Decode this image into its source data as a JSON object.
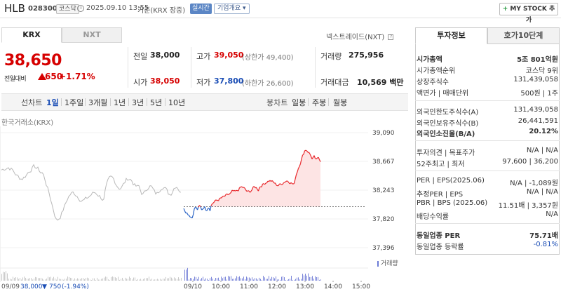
{
  "header": {
    "stock_name": "HLB",
    "stock_code": "028300",
    "market": "코스닥",
    "date_time": "2025.09.10 13:55",
    "basis": "기준(KRX 장중)",
    "realtime": "실시간",
    "company_info": "기업개요",
    "mystock_label": "MY STOCK 추가"
  },
  "tabs": {
    "krx": "KRX",
    "nxt": "NXT"
  },
  "nextrade_label": "넥스트레이드(NXT)",
  "price": {
    "current": "38,650",
    "change_label": "전일대비",
    "change_amount": "650",
    "change_rate": "+1.71%"
  },
  "quote": {
    "prev_close_label": "전일",
    "prev_close": "38,000",
    "high_label": "고가",
    "high": "39,050",
    "upper_limit": "(상한가 49,400)",
    "volume_label": "거래량",
    "volume": "275,956",
    "open_label": "시가",
    "open": "38,050",
    "low_label": "저가",
    "low": "37,800",
    "lower_limit": "(하한가 26,600)",
    "amount_label": "거래대금",
    "amount": "10,569 백만"
  },
  "period_bar": {
    "line_chart": "선차트",
    "periods": [
      "1일",
      "1주일",
      "3개월",
      "1년",
      "3년",
      "5년",
      "10년"
    ],
    "candle_chart": "봉차트",
    "candle_periods": [
      "일봉",
      "주봉",
      "월봉"
    ]
  },
  "chart_data": {
    "type": "line",
    "exchange_label": "한국거래소(KRX)",
    "y_ticks": [
      "39,090",
      "38,667",
      "38,243",
      "37,820",
      "37,396"
    ],
    "ylim": [
      37396,
      39090
    ],
    "prev_close": 38000,
    "x_ticks": [
      "09/10",
      "10:00",
      "11:00",
      "12:00",
      "13:00",
      "14:00",
      "15:00"
    ],
    "volume_legend": "거래량",
    "prev_day_label": "09/09",
    "prev_day_close": "38,000",
    "prev_day_change": "750",
    "prev_day_rate": "(-1.94%)",
    "colors": {
      "up": "#e8262a",
      "down": "#2a63c5",
      "prev": "#b8b8b8",
      "fill": "#fde4e4"
    }
  },
  "info": {
    "tab_invest": "투자정보",
    "tab_order": "호가10단계",
    "market_cap_label": "시가총액",
    "market_cap": "5조 801억원",
    "rank_label": "시가총액순위",
    "rank": "코스닥 9위",
    "shares_label": "상장주식수",
    "shares": "131,439,058",
    "par_label": "액면가 | 매매단위",
    "par": "500원 | 1주",
    "foreign_limit_label": "외국인한도주식수(A)",
    "foreign_limit": "131,439,058",
    "foreign_hold_label": "외국인보유주식수(B)",
    "foreign_hold": "26,441,591",
    "foreign_ratio_label": "외국인소진율(B/A)",
    "foreign_ratio": "20.12%",
    "opinion_label": "투자의견 | 목표주가",
    "opinion": "N/A | N/A",
    "high52_label": "52주최고 | 최저",
    "high52": "97,600 | 36,200",
    "per_label": "PER | EPS(2025.06)",
    "per": "N/A | -1,089원",
    "est_per_label": "추정PER | EPS",
    "est_per": "N/A | N/A",
    "pbr_label": "PBR | BPS (2025.06)",
    "pbr": "11.51배 | 3,357원",
    "dividend_label": "배당수익률",
    "dividend": "N/A",
    "sector_per_label": "동일업종 PER",
    "sector_per": "75.71배",
    "sector_rate_label": "동일업종 등락률",
    "sector_rate": "-0.81%"
  }
}
